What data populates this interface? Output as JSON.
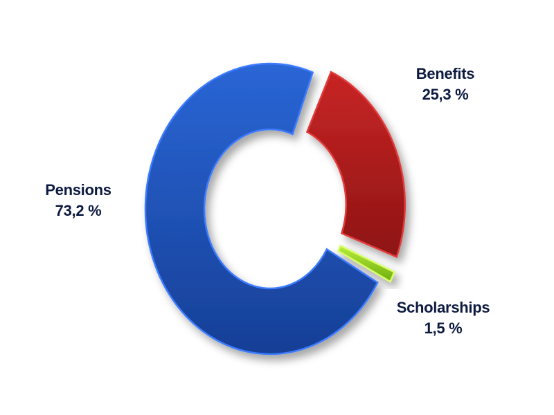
{
  "chart_data": {
    "type": "pie",
    "style": "donut",
    "title": "",
    "categories": [
      "Pensions",
      "Benefits",
      "Scholarships"
    ],
    "values": [
      73.2,
      25.3,
      1.5
    ],
    "value_labels": [
      "73,2 %",
      "25,3 %",
      "1,5 %"
    ],
    "unit": "%",
    "legend": "none",
    "colors": [
      "#1f55c2",
      "#b11d1d",
      "#8ccf1a"
    ]
  }
}
